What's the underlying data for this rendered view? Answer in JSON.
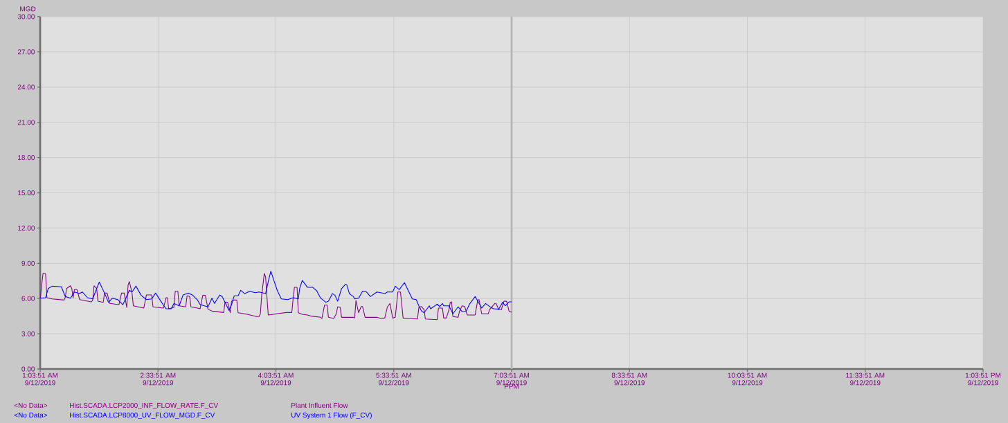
{
  "chart_data": {
    "type": "line",
    "xlabel": "PPM",
    "ylabel": "MGD",
    "xlim": [
      "2019-09-12T01:03:51",
      "2019-09-12T13:03:51"
    ],
    "ylim": [
      0,
      30
    ],
    "xticks": [
      {
        "value": "2019-09-12T01:03:51",
        "label": "1:03:51 AM 9/12/2019"
      },
      {
        "value": "2019-09-12T02:33:51",
        "label": "2:33:51 AM 9/12/2019"
      },
      {
        "value": "2019-09-12T04:03:51",
        "label": "4:03:51 AM 9/12/2019"
      },
      {
        "value": "2019-09-12T05:33:51",
        "label": "5:33:51 AM 9/12/2019"
      },
      {
        "value": "2019-09-12T07:03:51",
        "label": "7:03:51 AM 9/12/2019"
      },
      {
        "value": "2019-09-12T08:33:51",
        "label": "8:33:51 AM 9/12/2019"
      },
      {
        "value": "2019-09-12T10:03:51",
        "label": "10:03:51 AM 9/12/2019"
      },
      {
        "value": "2019-09-12T11:33:51",
        "label": "11:33:51 AM 9/12/2019"
      },
      {
        "value": "2019-09-12T13:03:51",
        "label": "1:03:51 PM 9/12/2019"
      }
    ],
    "yticks": [
      {
        "value": 0,
        "label": "0.00"
      },
      {
        "value": 3,
        "label": "3.00"
      },
      {
        "value": 6,
        "label": "6.00"
      },
      {
        "value": 9,
        "label": "9.00"
      },
      {
        "value": 12,
        "label": "12.00"
      },
      {
        "value": 15,
        "label": "15.00"
      },
      {
        "value": 18,
        "label": "18.00"
      },
      {
        "value": 21,
        "label": "21.00"
      },
      {
        "value": 24,
        "label": "24.00"
      },
      {
        "value": 27,
        "label": "27.00"
      },
      {
        "value": 30,
        "label": "30.00"
      }
    ],
    "grid": true,
    "legend": "bottom",
    "marker": "none",
    "line_style": "solid",
    "ref_lines": [
      {
        "axis": "x",
        "value": "2019-09-12T07:03:51",
        "color": "#b4b4b4"
      }
    ],
    "annotations": [
      "<No Data>",
      "Hist.SCADA.LCP2000_INF_FLOW_RATE.F_CV",
      "<No Data>",
      "Hist.SCADA.LCP8000_UV_FLOW_MGD.F_CV"
    ],
    "series": [
      {
        "name": "Plant Influent Flow",
        "color": "#800080",
        "x": [
          "2019-09-12T01:04",
          "2019-09-12T01:06",
          "2019-09-12T01:08",
          "2019-09-12T01:09",
          "2019-09-12T01:13",
          "2019-09-12T01:22",
          "2019-09-12T01:23",
          "2019-09-12T01:24",
          "2019-09-12T01:27",
          "2019-09-12T01:28",
          "2019-09-12T01:29",
          "2019-09-12T01:30",
          "2019-09-12T01:32",
          "2019-09-12T01:34",
          "2019-09-12T01:43",
          "2019-09-12T01:44",
          "2019-09-12T01:45",
          "2019-09-12T01:47",
          "2019-09-12T01:48",
          "2019-09-12T01:52",
          "2019-09-12T01:53",
          "2019-09-12T01:55",
          "2019-09-12T01:57",
          "2019-09-12T02:04",
          "2019-09-12T02:06",
          "2019-09-12T02:08",
          "2019-09-12T02:10",
          "2019-09-12T02:11",
          "2019-09-12T02:12",
          "2019-09-12T02:14",
          "2019-09-12T02:15",
          "2019-09-12T02:23",
          "2019-09-12T02:25",
          "2019-09-12T02:29",
          "2019-09-12T02:30",
          "2019-09-12T02:38",
          "2019-09-12T02:40",
          "2019-09-12T02:41",
          "2019-09-12T02:42",
          "2019-09-12T02:46",
          "2019-09-12T02:47",
          "2019-09-12T02:49",
          "2019-09-12T02:50",
          "2019-09-12T02:55",
          "2019-09-12T02:56",
          "2019-09-12T02:58",
          "2019-09-12T02:59",
          "2019-09-12T03:04",
          "2019-09-12T03:06",
          "2019-09-12T03:08",
          "2019-09-12T03:10",
          "2019-09-12T03:12",
          "2019-09-12T03:15",
          "2019-09-12T03:24",
          "2019-09-12T03:25",
          "2019-09-12T03:27",
          "2019-09-12T03:29",
          "2019-09-12T03:30",
          "2019-09-12T03:32",
          "2019-09-12T03:34",
          "2019-09-12T03:35",
          "2019-09-12T03:42",
          "2019-09-12T03:49",
          "2019-09-12T03:51",
          "2019-09-12T03:52",
          "2019-09-12T03:53",
          "2019-09-12T03:55",
          "2019-09-12T03:56",
          "2019-09-12T03:57",
          "2019-09-12T03:58",
          "2019-09-12T04:02",
          "2019-09-12T04:06",
          "2019-09-12T04:12",
          "2019-09-12T04:16",
          "2019-09-12T04:17",
          "2019-09-12T04:18",
          "2019-09-12T04:20",
          "2019-09-12T04:21",
          "2019-09-12T04:24",
          "2019-09-12T04:28",
          "2019-09-12T04:31",
          "2019-09-12T04:38",
          "2019-09-12T04:39",
          "2019-09-12T04:41",
          "2019-09-12T04:43",
          "2019-09-12T04:44",
          "2019-09-12T04:48",
          "2019-09-12T04:50",
          "2019-09-12T04:51",
          "2019-09-12T04:53",
          "2019-09-12T04:54",
          "2019-09-12T05:03",
          "2019-09-12T05:04",
          "2019-09-12T05:05",
          "2019-09-12T05:07",
          "2019-09-12T05:09",
          "2019-09-12T05:10",
          "2019-09-12T05:12",
          "2019-09-12T05:21",
          "2019-09-12T05:24",
          "2019-09-12T05:27",
          "2019-09-12T05:29",
          "2019-09-12T05:31",
          "2019-09-12T05:33",
          "2019-09-12T05:35",
          "2019-09-12T05:37",
          "2019-09-12T05:39",
          "2019-09-12T05:41",
          "2019-09-12T05:46",
          "2019-09-12T05:52",
          "2019-09-12T05:53",
          "2019-09-12T05:55",
          "2019-09-12T05:57",
          "2019-09-12T05:58",
          "2019-09-12T06:07",
          "2019-09-12T06:08",
          "2019-09-12T06:11",
          "2019-09-12T06:12",
          "2019-09-12T06:14",
          "2019-09-12T06:16",
          "2019-09-12T06:17",
          "2019-09-12T06:18",
          "2019-09-12T06:19",
          "2019-09-12T06:23",
          "2019-09-12T06:24",
          "2019-09-12T06:26",
          "2019-09-12T06:28",
          "2019-09-12T06:30",
          "2019-09-12T06:36",
          "2019-09-12T06:38",
          "2019-09-12T06:39",
          "2019-09-12T06:41",
          "2019-09-12T06:46",
          "2019-09-12T06:47",
          "2019-09-12T06:51",
          "2019-09-12T06:52",
          "2019-09-12T06:54",
          "2019-09-12T06:56",
          "2019-09-12T06:58",
          "2019-09-12T07:00",
          "2019-09-12T07:02",
          "2019-09-12T07:03:51"
        ],
        "values": [
          6.07,
          8.13,
          8.1,
          6.07,
          5.97,
          5.87,
          6.07,
          6.85,
          7.09,
          6.85,
          6.07,
          6.76,
          6.76,
          5.91,
          5.72,
          5.87,
          7.09,
          6.85,
          5.77,
          5.67,
          6.46,
          6.46,
          5.58,
          5.48,
          6.46,
          6.46,
          5.24,
          7.15,
          7.44,
          6.46,
          5.38,
          5.19,
          6.31,
          6.31,
          5.29,
          5.19,
          6.07,
          6.07,
          5.13,
          5.24,
          6.62,
          6.62,
          5.38,
          5.29,
          6.23,
          6.17,
          5.29,
          5.19,
          5.13,
          6.27,
          6.27,
          5.09,
          4.93,
          4.81,
          5.68,
          5.68,
          4.79,
          5.77,
          5.87,
          5.87,
          4.79,
          4.66,
          4.46,
          4.46,
          4.7,
          6.27,
          8.13,
          7.84,
          6.17,
          4.6,
          4.66,
          4.73,
          4.81,
          4.81,
          5.97,
          6.95,
          6.95,
          4.79,
          4.66,
          4.6,
          4.5,
          4.4,
          4.3,
          5.44,
          5.44,
          4.4,
          4.3,
          4.7,
          5.29,
          5.24,
          4.4,
          4.4,
          4.34,
          5.83,
          4.79,
          5.32,
          5.32,
          4.4,
          4.4,
          4.3,
          4.34,
          5.29,
          5.58,
          4.34,
          4.4,
          6.56,
          6.56,
          4.34,
          4.3,
          4.26,
          5.24,
          5.32,
          5.05,
          4.26,
          4.2,
          5.19,
          5.19,
          4.34,
          4.34,
          5.05,
          5.68,
          5.72,
          4.46,
          4.4,
          4.89,
          5.38,
          5.32,
          4.6,
          4.6,
          5.87,
          5.91,
          4.7,
          4.7,
          5.05,
          5.58,
          5.58,
          5.05,
          5.05,
          5.77,
          5.77,
          4.89,
          4.85
        ]
      },
      {
        "name": "UV System 1 Flow (F_CV)",
        "color": "#0000ff",
        "x": [
          "2019-09-12T01:04",
          "2019-09-12T01:08",
          "2019-09-12T01:10",
          "2019-09-12T01:13",
          "2019-09-12T01:20",
          "2019-09-12T01:23",
          "2019-09-12T01:27",
          "2019-09-12T01:30",
          "2019-09-12T01:34",
          "2019-09-12T01:36",
          "2019-09-12T01:40",
          "2019-09-12T01:44",
          "2019-09-12T01:47",
          "2019-09-12T01:49",
          "2019-09-12T01:53",
          "2019-09-12T01:56",
          "2019-09-12T01:59",
          "2019-09-12T02:03",
          "2019-09-12T02:07",
          "2019-09-12T02:09",
          "2019-09-12T02:12",
          "2019-09-12T02:14",
          "2019-09-12T02:17",
          "2019-09-12T02:21",
          "2019-09-12T02:25",
          "2019-09-12T02:29",
          "2019-09-12T02:32",
          "2019-09-12T02:36",
          "2019-09-12T02:38",
          "2019-09-12T02:40",
          "2019-09-12T02:44",
          "2019-09-12T02:46",
          "2019-09-12T02:50",
          "2019-09-12T02:53",
          "2019-09-12T02:57",
          "2019-09-12T03:00",
          "2019-09-12T03:04",
          "2019-09-12T03:06",
          "2019-09-12T03:12",
          "2019-09-12T03:15",
          "2019-09-12T03:17",
          "2019-09-12T03:21",
          "2019-09-12T03:23",
          "2019-09-12T03:28",
          "2019-09-12T03:30",
          "2019-09-12T03:32",
          "2019-09-12T03:35",
          "2019-09-12T03:37",
          "2019-09-12T03:40",
          "2019-09-12T03:44",
          "2019-09-12T03:48",
          "2019-09-12T03:51",
          "2019-09-12T03:56",
          "2019-09-12T03:58",
          "2019-09-12T04:00",
          "2019-09-12T04:02",
          "2019-09-12T04:05",
          "2019-09-12T04:08",
          "2019-09-12T04:13",
          "2019-09-12T04:17",
          "2019-09-12T04:21",
          "2019-09-12T04:22",
          "2019-09-12T04:24",
          "2019-09-12T04:28",
          "2019-09-12T04:32",
          "2019-09-12T04:35",
          "2019-09-12T04:38",
          "2019-09-12T04:42",
          "2019-09-12T04:44",
          "2019-09-12T04:47",
          "2019-09-12T04:49",
          "2019-09-12T04:51",
          "2019-09-12T04:54",
          "2019-09-12T04:57",
          "2019-09-12T04:58",
          "2019-09-12T05:00",
          "2019-09-12T05:03",
          "2019-09-12T05:04",
          "2019-09-12T05:07",
          "2019-09-12T05:10",
          "2019-09-12T05:13",
          "2019-09-12T05:16",
          "2019-09-12T05:21",
          "2019-09-12T05:27",
          "2019-09-12T05:29",
          "2019-09-12T05:33",
          "2019-09-12T05:35",
          "2019-09-12T05:38",
          "2019-09-12T05:42",
          "2019-09-12T05:45",
          "2019-09-12T05:48",
          "2019-09-12T05:51",
          "2019-09-12T05:53",
          "2019-09-12T05:55",
          "2019-09-12T05:57",
          "2019-09-12T06:01",
          "2019-09-12T06:02",
          "2019-09-12T06:07",
          "2019-09-12T06:09",
          "2019-09-12T06:11",
          "2019-09-12T06:12",
          "2019-09-12T06:16",
          "2019-09-12T06:19",
          "2019-09-12T06:23",
          "2019-09-12T06:26",
          "2019-09-12T06:29",
          "2019-09-12T06:32",
          "2019-09-12T06:36",
          "2019-09-12T06:38",
          "2019-09-12T06:41",
          "2019-09-12T06:44",
          "2019-09-12T06:48",
          "2019-09-12T06:50",
          "2019-09-12T06:54",
          "2019-09-12T06:57",
          "2019-09-12T06:59",
          "2019-09-12T07:02",
          "2019-09-12T07:03:51"
        ],
        "values": [
          6.03,
          6.07,
          6.85,
          7.05,
          7.0,
          6.17,
          6.03,
          6.56,
          6.42,
          6.56,
          6.07,
          5.97,
          6.85,
          7.4,
          6.46,
          5.68,
          6.03,
          5.91,
          5.48,
          5.97,
          6.7,
          6.56,
          7.05,
          6.27,
          5.91,
          5.97,
          6.46,
          5.77,
          5.44,
          5.13,
          5.13,
          5.58,
          5.38,
          6.31,
          6.46,
          6.31,
          5.87,
          5.48,
          5.29,
          6.03,
          5.58,
          6.31,
          6.13,
          4.99,
          5.48,
          6.23,
          6.23,
          6.7,
          6.42,
          6.62,
          6.5,
          6.56,
          6.42,
          7.44,
          8.33,
          7.64,
          6.66,
          5.97,
          5.91,
          6.07,
          5.97,
          6.85,
          7.54,
          6.95,
          6.95,
          6.66,
          6.03,
          5.68,
          5.77,
          6.42,
          6.27,
          5.77,
          6.85,
          7.21,
          7.15,
          6.4,
          6.17,
          5.97,
          6.03,
          6.62,
          6.56,
          6.17,
          6.56,
          6.42,
          6.56,
          6.56,
          7.05,
          6.76,
          7.35,
          6.66,
          5.97,
          5.91,
          5.38,
          4.93,
          4.79,
          5.38,
          5.13,
          5.52,
          5.32,
          5.58,
          5.38,
          5.38,
          4.7,
          5.29,
          4.89,
          4.89,
          5.58,
          6.17,
          5.77,
          5.19,
          5.58,
          5.24,
          5.13,
          5.09,
          5.68,
          5.38,
          5.72,
          5.72
        ]
      }
    ]
  }
}
